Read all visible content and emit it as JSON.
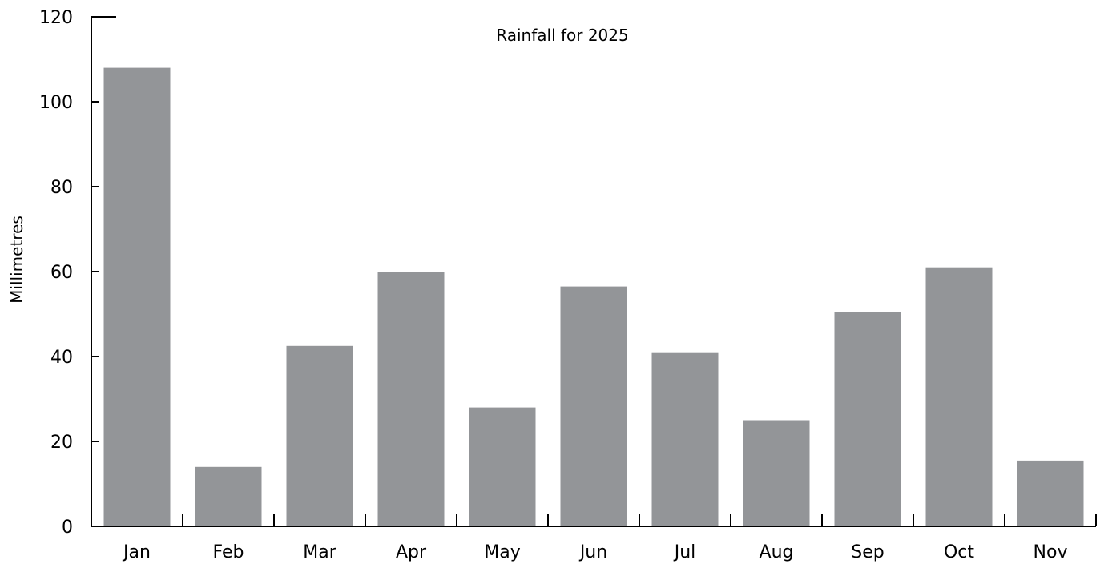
{
  "chart_data": {
    "type": "bar",
    "title": "Rainfall for 2025",
    "xlabel": "",
    "ylabel": "Millimetres",
    "categories": [
      "Jan",
      "Feb",
      "Mar",
      "Apr",
      "May",
      "Jun",
      "Jul",
      "Aug",
      "Sep",
      "Oct",
      "Nov"
    ],
    "values": [
      108,
      14,
      42.5,
      60,
      28,
      56.5,
      41,
      25,
      50.5,
      61,
      15.5
    ],
    "ylim": [
      0,
      120
    ],
    "yticks": [
      "0",
      "20",
      "40",
      "60",
      "80",
      "100",
      "120"
    ],
    "grid": false,
    "legend": "none",
    "bar_color": "#939598"
  }
}
